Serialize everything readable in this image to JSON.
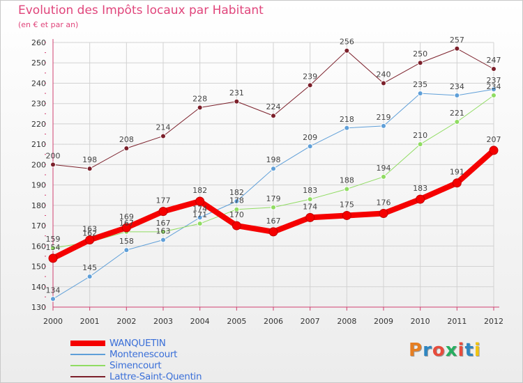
{
  "header": {
    "title": "Evolution des Impôts locaux par Habitant",
    "subtitle": "(en € et par an)"
  },
  "colors": {
    "title": "#e0457b",
    "legend_text": "#3a6fd8",
    "axis": "#d04070",
    "grid": "#d2d2d2"
  },
  "logo": {
    "text": "Proxiti",
    "letter_colors": [
      "#e67e22",
      "#2e86c1",
      "#e74c3c",
      "#27ae60",
      "#e74c3c",
      "#2e86c1",
      "#f1c40f"
    ]
  },
  "chart_data": {
    "type": "line",
    "title": "Evolution des Impôts locaux par Habitant",
    "subtitle": "(en € et par an)",
    "xlabel": "",
    "ylabel": "",
    "x": [
      "2000",
      "2001",
      "2002",
      "2003",
      "2004",
      "2005",
      "2006",
      "2007",
      "2008",
      "2009",
      "2010",
      "2011",
      "2012"
    ],
    "ylim": [
      130,
      260
    ],
    "yticks": [
      130,
      140,
      150,
      160,
      170,
      180,
      190,
      200,
      210,
      220,
      230,
      240,
      250,
      260
    ],
    "grid": true,
    "legend_position": "bottom-left",
    "series": [
      {
        "name": "Lattre-Saint-Quentin",
        "color": "#7b1f2a",
        "width": 1,
        "values": [
          200,
          198,
          208,
          214,
          228,
          231,
          224,
          239,
          256,
          240,
          250,
          257,
          247
        ]
      },
      {
        "name": "Montenescourt",
        "color": "#5f9fd8",
        "width": 1,
        "values": [
          134,
          145,
          158,
          163,
          174,
          182,
          198,
          209,
          218,
          219,
          235,
          234,
          237
        ]
      },
      {
        "name": "Simencourt",
        "color": "#90dc62",
        "width": 1,
        "values": [
          159,
          162,
          167,
          167,
          171,
          178,
          179,
          183,
          188,
          194,
          210,
          221,
          234
        ]
      },
      {
        "name": "WANQUETIN",
        "color": "#f50000",
        "width": 8,
        "values": [
          154,
          163,
          169,
          177,
          182,
          170,
          167,
          174,
          175,
          176,
          183,
          191,
          207
        ]
      }
    ],
    "legend_order": [
      "WANQUETIN",
      "Montenescourt",
      "Simencourt",
      "Lattre-Saint-Quentin"
    ]
  }
}
